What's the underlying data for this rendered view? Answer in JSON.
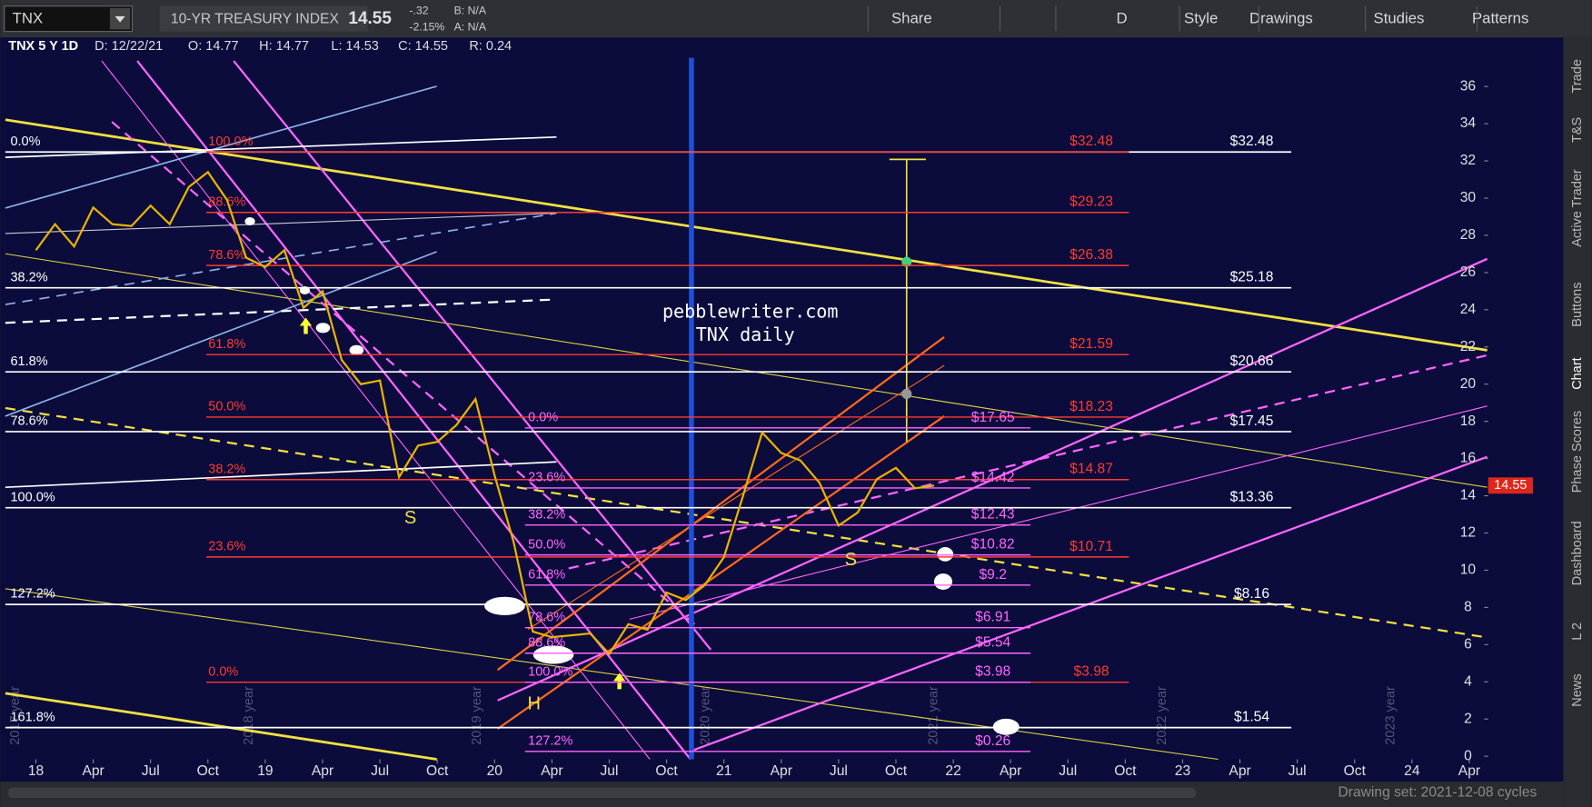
{
  "toolbar": {
    "symbol": "TNX",
    "description": "10-YR TREASURY INDEX",
    "last": "14.55",
    "change": "-.32",
    "change_pct": "-2.15%",
    "bid": "B: N/A",
    "ask": "A: N/A",
    "buttons": [
      "Share",
      "D",
      "Style",
      "Drawings",
      "Studies",
      "Patterns"
    ]
  },
  "info": {
    "label": "TNX 5 Y 1D",
    "date": "D: 12/22/21",
    "open": "O: 14.77",
    "high": "H: 14.77",
    "low": "L: 14.53",
    "close": "C: 14.55",
    "range": "R: 0.24"
  },
  "side_tabs": [
    "Trade",
    "T&S",
    "Active Trader",
    "Buttons",
    "Chart",
    "Phase Scores",
    "Dashboard",
    "L 2",
    "News"
  ],
  "footer": "Drawing set: 2021-12-08 cycles",
  "chart_data": {
    "type": "line",
    "color": "#e8b400",
    "x": [
      0,
      1,
      2,
      3,
      4,
      5,
      6,
      7,
      8,
      9,
      10,
      11,
      12,
      13,
      14,
      15,
      16,
      17,
      18,
      19,
      20,
      21,
      22,
      23,
      24,
      25,
      26,
      27,
      28,
      29,
      30,
      31,
      32,
      33,
      34,
      35,
      36,
      37,
      38,
      39,
      40,
      41,
      42,
      43,
      44,
      45,
      46,
      47
    ],
    "values": [
      27.2,
      28.6,
      27.4,
      29.5,
      28.6,
      28.5,
      29.6,
      28.6,
      30.6,
      31.4,
      29.9,
      26.8,
      26.3,
      27.2,
      24.1,
      25.0,
      21.3,
      20.0,
      20.2,
      15.0,
      16.7,
      16.9,
      17.8,
      19.2,
      15.1,
      11.5,
      6.7,
      6.4,
      6.5,
      6.6,
      5.5,
      7.1,
      6.8,
      8.8,
      8.4,
      9.2,
      10.7,
      14.0,
      17.4,
      16.3,
      15.9,
      14.7,
      12.4,
      13.1,
      14.9,
      15.5,
      14.4,
      14.55
    ],
    "last_price": 14.55,
    "xlim": [
      -1.6,
      75.3
    ],
    "ylim": [
      0,
      38.5
    ],
    "yticks": [
      0,
      2,
      4,
      6,
      8,
      10,
      12,
      14,
      16,
      18,
      20,
      22,
      24,
      26,
      28,
      30,
      32,
      34,
      36
    ],
    "xticks": [
      {
        "value": 0,
        "label": "18"
      },
      {
        "value": 3,
        "label": "Apr"
      },
      {
        "value": 6,
        "label": "Jul"
      },
      {
        "value": 9,
        "label": "Oct"
      },
      {
        "value": 12,
        "label": "19"
      },
      {
        "value": 15,
        "label": "Apr"
      },
      {
        "value": 18,
        "label": "Jul"
      },
      {
        "value": 21,
        "label": "Oct"
      },
      {
        "value": 24,
        "label": "20"
      },
      {
        "value": 27,
        "label": "Apr"
      },
      {
        "value": 30,
        "label": "Jul"
      },
      {
        "value": 33,
        "label": "Oct"
      },
      {
        "value": 36,
        "label": "21"
      },
      {
        "value": 39,
        "label": "Apr"
      },
      {
        "value": 42,
        "label": "Jul"
      },
      {
        "value": 45,
        "label": "Oct"
      },
      {
        "value": 48,
        "label": "22"
      },
      {
        "value": 51,
        "label": "Apr"
      },
      {
        "value": 54,
        "label": "Jul"
      },
      {
        "value": 57,
        "label": "Oct"
      },
      {
        "value": 60,
        "label": "23"
      },
      {
        "value": 63,
        "label": "Apr"
      },
      {
        "value": 66,
        "label": "Jul"
      },
      {
        "value": 69,
        "label": "Oct"
      },
      {
        "value": 72,
        "label": "24"
      },
      {
        "value": 75,
        "label": "Apr"
      }
    ],
    "fib_sets": [
      {
        "color": "#ffffff",
        "levels": [
          {
            "value": 32.48,
            "pct": "0.0%",
            "label": "$32.48"
          },
          {
            "value": 25.18,
            "pct": "38.2%",
            "label": "$25.18"
          },
          {
            "value": 20.66,
            "pct": "61.8%",
            "label": "$20.66"
          },
          {
            "value": 17.45,
            "pct": "78.6%",
            "label": "$17.45"
          },
          {
            "value": 13.36,
            "pct": "100.0%",
            "label": "$13.36"
          },
          {
            "value": 8.16,
            "pct": "127.2%",
            "label": "$8.16"
          },
          {
            "value": 1.54,
            "pct": "161.8%",
            "label": "$1.54"
          }
        ]
      },
      {
        "color": "#ff3b2f",
        "levels": [
          {
            "value": 32.48,
            "pct": "100.0%",
            "label": "$32.48"
          },
          {
            "value": 29.23,
            "pct": "88.6%",
            "label": "$29.23"
          },
          {
            "value": 26.38,
            "pct": "78.6%",
            "label": "$26.38"
          },
          {
            "value": 21.59,
            "pct": "61.8%",
            "label": "$21.59"
          },
          {
            "value": 18.23,
            "pct": "50.0%",
            "label": "$18.23"
          },
          {
            "value": 14.87,
            "pct": "38.2%",
            "label": "$14.87"
          },
          {
            "value": 10.71,
            "pct": "23.6%",
            "label": "$10.71"
          },
          {
            "value": 3.98,
            "pct": "0.0%",
            "label": "$3.98"
          }
        ]
      },
      {
        "color": "#ff66ff",
        "levels": [
          {
            "value": 17.65,
            "pct": "0.0%",
            "label": "$17.65"
          },
          {
            "value": 14.42,
            "pct": "23.6%",
            "label": "$14.42"
          },
          {
            "value": 12.43,
            "pct": "38.2%",
            "label": "$12.43"
          },
          {
            "value": 10.82,
            "pct": "50.0%",
            "label": "$10.82"
          },
          {
            "value": 9.2,
            "pct": "61.8%",
            "label": "$9.2"
          },
          {
            "value": 6.91,
            "pct": "78.6%",
            "label": "$6.91"
          },
          {
            "value": 5.54,
            "pct": "88.6%",
            "label": "$5.54"
          },
          {
            "value": 3.98,
            "pct": "100.0%",
            "label": "$3.98"
          },
          {
            "value": 0.26,
            "pct": "127.2%",
            "label": "$0.26"
          }
        ]
      }
    ],
    "watermark": [
      "pebblewriter.com",
      "TNX daily"
    ],
    "letters": [
      "S",
      "S",
      "H"
    ],
    "year_labels": [
      "2017 year",
      "2018 year",
      "2019 year",
      "2020 year",
      "2021 year",
      "2022 year",
      "2023 year"
    ]
  }
}
